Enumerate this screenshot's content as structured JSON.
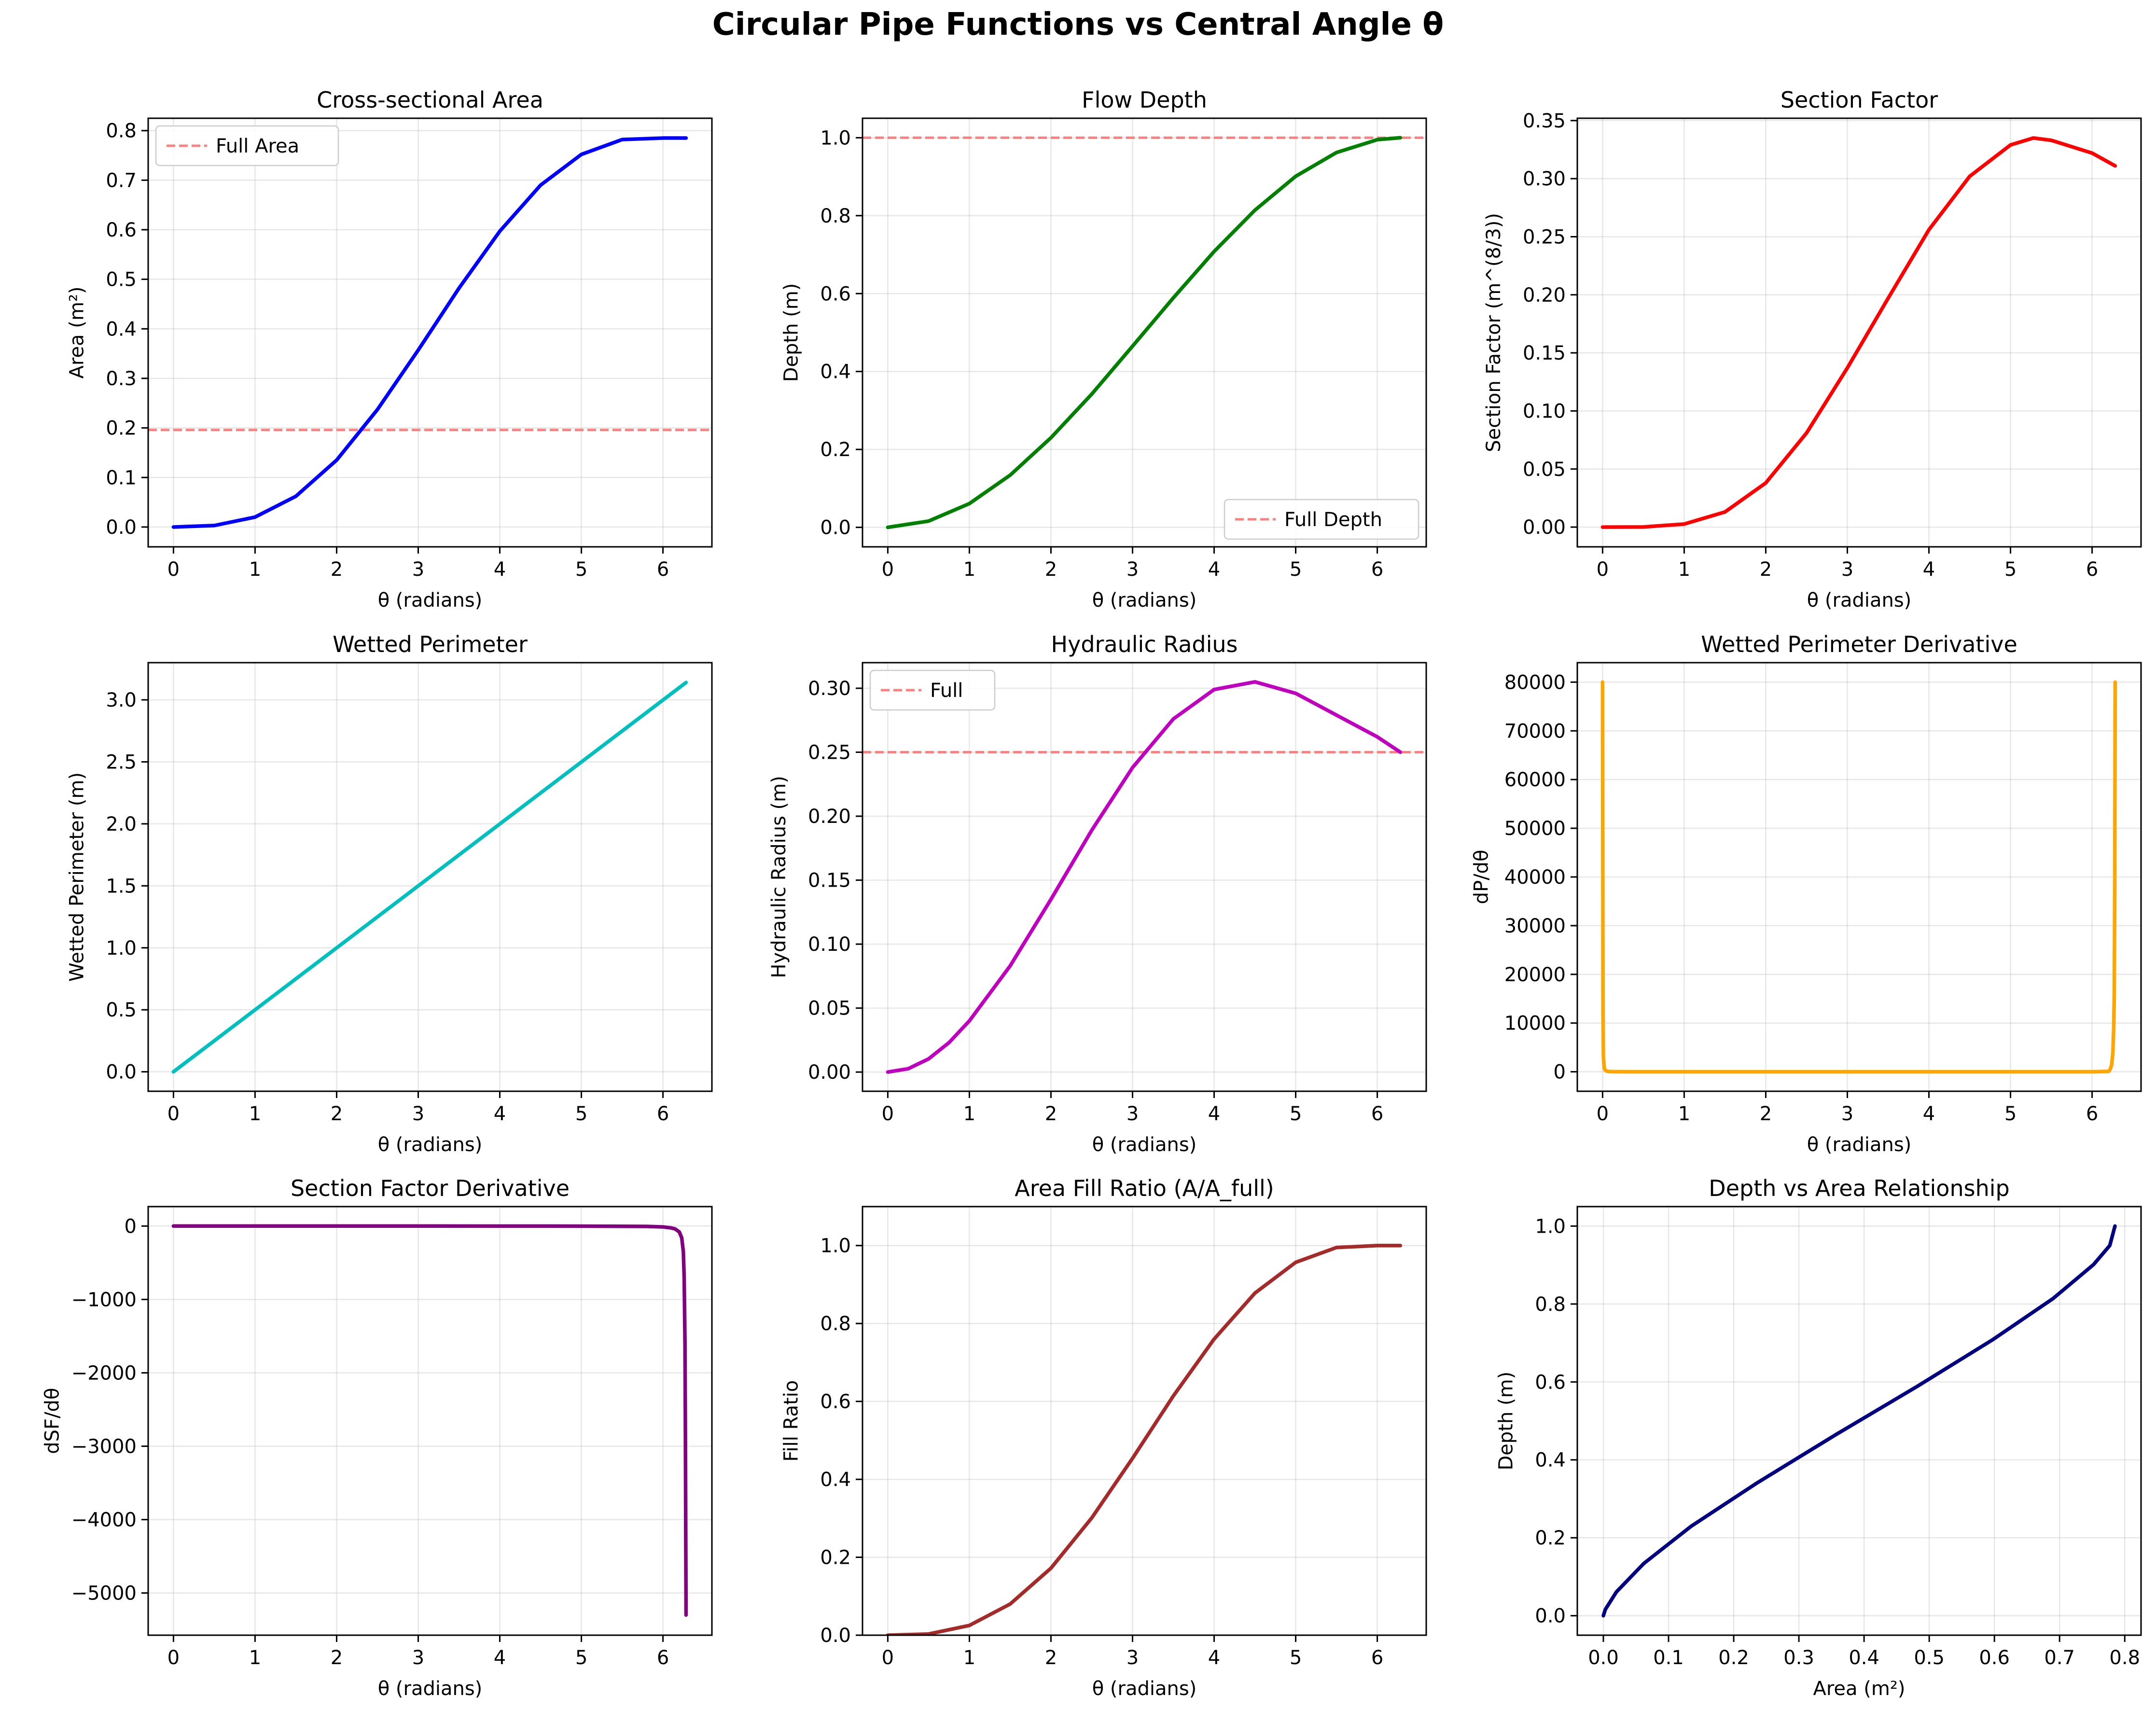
{
  "figure_title": "Circular Pipe Functions vs Central Angle θ",
  "chart_data": [
    {
      "type": "line",
      "title": "Cross-sectional Area",
      "xlabel": "θ (radians)",
      "ylabel": "Area (m²)",
      "xlim": [
        -0.31,
        6.6
      ],
      "ylim": [
        -0.04,
        0.825
      ],
      "xticks": [
        0,
        1,
        2,
        3,
        4,
        5,
        6
      ],
      "yticks": [
        0.0,
        0.1,
        0.2,
        0.3,
        0.4,
        0.5,
        0.6,
        0.7,
        0.8
      ],
      "xtick_labels": [
        "0",
        "1",
        "2",
        "3",
        "4",
        "5",
        "6"
      ],
      "ytick_labels": [
        "0.0",
        "0.1",
        "0.2",
        "0.3",
        "0.4",
        "0.5",
        "0.6",
        "0.7",
        "0.8"
      ],
      "grid": true,
      "series": [
        {
          "color": "#0000ff",
          "x": [
            0,
            0.5,
            1.0,
            1.5,
            2.0,
            2.5,
            3.0,
            3.5,
            4.0,
            4.5,
            5.0,
            5.5,
            6.0,
            6.283
          ],
          "y": [
            0.0,
            0.003,
            0.02,
            0.062,
            0.135,
            0.237,
            0.357,
            0.482,
            0.597,
            0.69,
            0.752,
            0.782,
            0.785,
            0.785
          ]
        }
      ],
      "hlines": [
        {
          "y": 0.196,
          "color": "#ff7f7f",
          "style": "dashed",
          "label": "Full Area"
        }
      ],
      "legend": {
        "position": "upper-left",
        "entries": [
          {
            "label": "Full Area",
            "color": "#ff7f7f",
            "style": "dashed"
          }
        ]
      }
    },
    {
      "type": "line",
      "title": "Flow Depth",
      "xlabel": "θ (radians)",
      "ylabel": "Depth (m)",
      "xlim": [
        -0.31,
        6.6
      ],
      "ylim": [
        -0.05,
        1.05
      ],
      "xticks": [
        0,
        1,
        2,
        3,
        4,
        5,
        6
      ],
      "yticks": [
        0.0,
        0.2,
        0.4,
        0.6,
        0.8,
        1.0
      ],
      "xtick_labels": [
        "0",
        "1",
        "2",
        "3",
        "4",
        "5",
        "6"
      ],
      "ytick_labels": [
        "0.0",
        "0.2",
        "0.4",
        "0.6",
        "0.8",
        "1.0"
      ],
      "grid": true,
      "series": [
        {
          "color": "#008000",
          "x": [
            0,
            0.5,
            1.0,
            1.5,
            2.0,
            2.5,
            3.0,
            3.5,
            4.0,
            4.5,
            5.0,
            5.5,
            6.0,
            6.283
          ],
          "y": [
            0.0,
            0.016,
            0.061,
            0.134,
            0.23,
            0.342,
            0.465,
            0.589,
            0.708,
            0.814,
            0.901,
            0.962,
            0.995,
            1.0
          ]
        }
      ],
      "hlines": [
        {
          "y": 1.0,
          "color": "#ff7f7f",
          "style": "dashed",
          "label": "Full Depth"
        }
      ],
      "legend": {
        "position": "lower-right",
        "entries": [
          {
            "label": "Full Depth",
            "color": "#ff7f7f",
            "style": "dashed"
          }
        ]
      }
    },
    {
      "type": "line",
      "title": "Section Factor",
      "xlabel": "θ (radians)",
      "ylabel": "Section Factor (m^(8/3))",
      "xlim": [
        -0.31,
        6.6
      ],
      "ylim": [
        -0.017,
        0.352
      ],
      "xticks": [
        0,
        1,
        2,
        3,
        4,
        5,
        6
      ],
      "yticks": [
        0.0,
        0.05,
        0.1,
        0.15,
        0.2,
        0.25,
        0.3,
        0.35
      ],
      "xtick_labels": [
        "0",
        "1",
        "2",
        "3",
        "4",
        "5",
        "6"
      ],
      "ytick_labels": [
        "0.00",
        "0.05",
        "0.10",
        "0.15",
        "0.20",
        "0.25",
        "0.30",
        "0.35"
      ],
      "grid": true,
      "series": [
        {
          "color": "#ff0000",
          "x": [
            0,
            0.5,
            1.0,
            1.5,
            2.0,
            2.5,
            3.0,
            3.5,
            4.0,
            4.5,
            5.0,
            5.28,
            5.5,
            6.0,
            6.283
          ],
          "y": [
            0.0,
            0.0001,
            0.0026,
            0.013,
            0.038,
            0.081,
            0.137,
            0.197,
            0.256,
            0.302,
            0.329,
            0.335,
            0.333,
            0.322,
            0.311
          ]
        }
      ],
      "hlines": [],
      "legend": null
    },
    {
      "type": "line",
      "title": "Wetted Perimeter",
      "xlabel": "θ (radians)",
      "ylabel": "Wetted Perimeter (m)",
      "xlim": [
        -0.31,
        6.6
      ],
      "ylim": [
        -0.157,
        3.3
      ],
      "xticks": [
        0,
        1,
        2,
        3,
        4,
        5,
        6
      ],
      "yticks": [
        0.0,
        0.5,
        1.0,
        1.5,
        2.0,
        2.5,
        3.0
      ],
      "xtick_labels": [
        "0",
        "1",
        "2",
        "3",
        "4",
        "5",
        "6"
      ],
      "ytick_labels": [
        "0.0",
        "0.5",
        "1.0",
        "1.5",
        "2.0",
        "2.5",
        "3.0"
      ],
      "grid": true,
      "series": [
        {
          "color": "#00bfbf",
          "x": [
            0,
            6.283
          ],
          "y": [
            0.0,
            3.14
          ]
        }
      ],
      "hlines": [],
      "legend": null
    },
    {
      "type": "line",
      "title": "Hydraulic Radius",
      "xlabel": "θ (radians)",
      "ylabel": "Hydraulic Radius (m)",
      "xlim": [
        -0.31,
        6.6
      ],
      "ylim": [
        -0.015,
        0.32
      ],
      "xticks": [
        0,
        1,
        2,
        3,
        4,
        5,
        6
      ],
      "yticks": [
        0.0,
        0.05,
        0.1,
        0.15,
        0.2,
        0.25,
        0.3
      ],
      "xtick_labels": [
        "0",
        "1",
        "2",
        "3",
        "4",
        "5",
        "6"
      ],
      "ytick_labels": [
        "0.00",
        "0.05",
        "0.10",
        "0.15",
        "0.20",
        "0.25",
        "0.30"
      ],
      "grid": true,
      "series": [
        {
          "color": "#bf00bf",
          "x": [
            0,
            0.25,
            0.5,
            0.75,
            1.0,
            1.5,
            2.0,
            2.5,
            3.0,
            3.5,
            4.0,
            4.5,
            5.0,
            5.5,
            6.0,
            6.283
          ],
          "y": [
            0.0,
            0.0026,
            0.0103,
            0.023,
            0.04,
            0.083,
            0.135,
            0.189,
            0.238,
            0.276,
            0.299,
            0.305,
            0.296,
            0.279,
            0.262,
            0.25
          ]
        }
      ],
      "hlines": [
        {
          "y": 0.25,
          "color": "#ff7f7f",
          "style": "dashed",
          "label": "Full"
        }
      ],
      "legend": {
        "position": "upper-left",
        "entries": [
          {
            "label": "Full",
            "color": "#ff7f7f",
            "style": "dashed"
          }
        ]
      }
    },
    {
      "type": "line",
      "title": "Wetted Perimeter Derivative",
      "xlabel": "θ (radians)",
      "ylabel": "dP/dθ",
      "xlim": [
        -0.31,
        6.6
      ],
      "ylim": [
        -4000,
        84000
      ],
      "xticks": [
        0,
        1,
        2,
        3,
        4,
        5,
        6
      ],
      "yticks": [
        0,
        10000,
        20000,
        30000,
        40000,
        50000,
        60000,
        70000,
        80000
      ],
      "xtick_labels": [
        "0",
        "1",
        "2",
        "3",
        "4",
        "5",
        "6"
      ],
      "ytick_labels": [
        "0",
        "10000",
        "20000",
        "30000",
        "40000",
        "50000",
        "60000",
        "70000",
        "80000"
      ],
      "grid": true,
      "series": [
        {
          "color": "#ffa500",
          "x": [
            0.0,
            0.005,
            0.01,
            0.02,
            0.03,
            0.05,
            0.08,
            0.12,
            0.2,
            0.4,
            1.0,
            6.0,
            6.2,
            6.22,
            6.24,
            6.255,
            6.265,
            6.272,
            6.278,
            6.283
          ],
          "y": [
            80000,
            12800,
            3200,
            800,
            356,
            128,
            50,
            22,
            8,
            2,
            0.4,
            0.5,
            80,
            420,
            1400,
            4000,
            9000,
            16000,
            40000,
            80000
          ]
        }
      ],
      "hlines": [],
      "legend": null
    },
    {
      "type": "line",
      "title": "Section Factor Derivative",
      "xlabel": "θ (radians)",
      "ylabel": "dSF/dθ",
      "xlim": [
        -0.31,
        6.6
      ],
      "ylim": [
        -5575,
        265
      ],
      "xticks": [
        0,
        1,
        2,
        3,
        4,
        5,
        6
      ],
      "yticks": [
        0,
        -1000,
        -2000,
        -3000,
        -4000,
        -5000
      ],
      "xtick_labels": [
        "0",
        "1",
        "2",
        "3",
        "4",
        "5",
        "6"
      ],
      "ytick_labels": [
        "0",
        "−1000",
        "−2000",
        "−3000",
        "−4000",
        "−5000"
      ],
      "grid": true,
      "series": [
        {
          "color": "#800080",
          "x": [
            0.0,
            1.0,
            3.0,
            5.0,
            5.8,
            6.0,
            6.1,
            6.15,
            6.2,
            6.23,
            6.25,
            6.26,
            6.27,
            6.275,
            6.283
          ],
          "y": [
            0,
            0,
            0,
            -1,
            -5,
            -12,
            -25,
            -40,
            -80,
            -160,
            -350,
            -700,
            -1600,
            -2800,
            -5300
          ]
        }
      ],
      "hlines": [],
      "legend": null
    },
    {
      "type": "line",
      "title": "Area Fill Ratio (A/A_full)",
      "xlabel": "θ (radians)",
      "ylabel": "Fill Ratio",
      "xlim": [
        -0.31,
        6.6
      ],
      "ylim": [
        0.0,
        1.1
      ],
      "xticks": [
        0,
        1,
        2,
        3,
        4,
        5,
        6
      ],
      "yticks": [
        0.0,
        0.2,
        0.4,
        0.6,
        0.8,
        1.0
      ],
      "xtick_labels": [
        "0",
        "1",
        "2",
        "3",
        "4",
        "5",
        "6"
      ],
      "ytick_labels": [
        "0.0",
        "0.2",
        "0.4",
        "0.6",
        "0.8",
        "1.0"
      ],
      "grid": true,
      "series": [
        {
          "color": "#a52a2a",
          "x": [
            0,
            0.5,
            1.0,
            1.5,
            2.0,
            2.5,
            3.0,
            3.5,
            4.0,
            4.5,
            5.0,
            5.5,
            6.0,
            6.283
          ],
          "y": [
            0.0,
            0.003,
            0.025,
            0.08,
            0.172,
            0.301,
            0.454,
            0.614,
            0.76,
            0.878,
            0.957,
            0.995,
            1.0,
            1.0
          ]
        }
      ],
      "hlines": [],
      "legend": null
    },
    {
      "type": "line",
      "title": "Depth vs Area Relationship",
      "xlabel": "Area (m²)",
      "ylabel": "Depth (m)",
      "xlim": [
        -0.04,
        0.825
      ],
      "ylim": [
        -0.05,
        1.05
      ],
      "xticks": [
        0.0,
        0.1,
        0.2,
        0.3,
        0.4,
        0.5,
        0.6,
        0.7,
        0.8
      ],
      "yticks": [
        0.0,
        0.2,
        0.4,
        0.6,
        0.8,
        1.0
      ],
      "xtick_labels": [
        "0.0",
        "0.1",
        "0.2",
        "0.3",
        "0.4",
        "0.5",
        "0.6",
        "0.7",
        "0.8"
      ],
      "ytick_labels": [
        "0.0",
        "0.2",
        "0.4",
        "0.6",
        "0.8",
        "1.0"
      ],
      "grid": true,
      "series": [
        {
          "color": "#000080",
          "x": [
            0.0,
            0.003,
            0.02,
            0.062,
            0.135,
            0.237,
            0.357,
            0.482,
            0.597,
            0.69,
            0.752,
            0.777,
            0.785
          ],
          "y": [
            0.0,
            0.016,
            0.061,
            0.134,
            0.23,
            0.342,
            0.465,
            0.589,
            0.708,
            0.814,
            0.901,
            0.95,
            1.0
          ]
        }
      ],
      "hlines": [],
      "legend": null
    }
  ]
}
